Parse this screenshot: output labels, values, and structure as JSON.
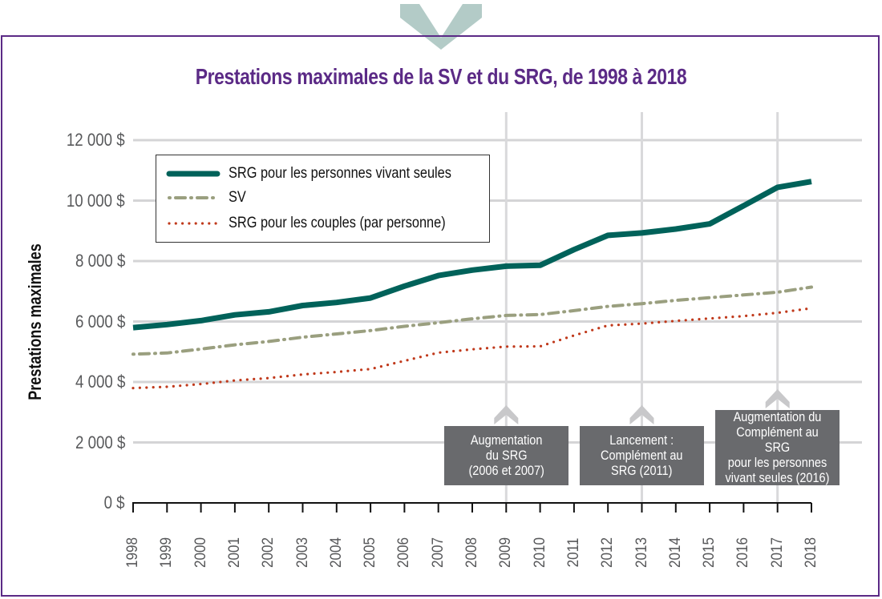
{
  "colors": {
    "frame": "#5b2a86",
    "title": "#5b2a86",
    "chevron": "#b3cbc7",
    "srg_single": "#00625a",
    "sv": "#9a9f7f",
    "srg_couple": "#c0391b",
    "annotation_bg": "#696a6d",
    "gridline": "#d4d4d6"
  },
  "chart_data": {
    "type": "line",
    "title": "Prestations maximales de la SV et du SRG, de 1998 à 2018",
    "xlabel": "",
    "ylabel": "Prestations maximales",
    "x": [
      1998,
      1999,
      2000,
      2001,
      2002,
      2003,
      2004,
      2005,
      2006,
      2007,
      2008,
      2009,
      2010,
      2011,
      2012,
      2013,
      2014,
      2015,
      2016,
      2017,
      2018
    ],
    "x_tick_labels": [
      "1998",
      "1999",
      "2000",
      "2001",
      "2002",
      "2003",
      "2004",
      "2005",
      "2006",
      "2007",
      "2008",
      "2009",
      "2010",
      "2011",
      "2012",
      "2013",
      "2014",
      "2015",
      "2016",
      "2017",
      "2018"
    ],
    "ylim": [
      0,
      12000
    ],
    "y_ticks": [
      0,
      2000,
      4000,
      6000,
      8000,
      10000,
      12000
    ],
    "y_tick_labels": [
      "0 $",
      "2 000 $",
      "4 000 $",
      "6 000 $",
      "8 000 $",
      "10 000 $",
      "12 000 $"
    ],
    "grid": true,
    "legend_position": "top-left",
    "series": [
      {
        "name": "SRG pour les personnes vivant seules",
        "style": "solid",
        "values": [
          5800,
          5900,
          6030,
          6220,
          6320,
          6530,
          6630,
          6780,
          7170,
          7520,
          7700,
          7830,
          7860,
          8380,
          8850,
          8930,
          9060,
          9230,
          9830,
          10440,
          10630
        ]
      },
      {
        "name": "SV",
        "style": "dash-dot",
        "values": [
          4920,
          4960,
          5090,
          5230,
          5340,
          5480,
          5590,
          5700,
          5840,
          5960,
          6090,
          6200,
          6230,
          6360,
          6500,
          6590,
          6700,
          6790,
          6880,
          6970,
          7140
        ]
      },
      {
        "name": "SRG pour les couples (par personne)",
        "style": "dotted",
        "values": [
          3800,
          3840,
          3930,
          4050,
          4130,
          4250,
          4330,
          4430,
          4700,
          4970,
          5080,
          5170,
          5180,
          5540,
          5870,
          5930,
          6020,
          6100,
          6180,
          6290,
          6440
        ]
      }
    ],
    "annotations": [
      {
        "year": 2009,
        "lines": [
          "Augmentation",
          "du SRG",
          "(2006 et 2007)"
        ]
      },
      {
        "year": 2013,
        "lines": [
          "Lancement :",
          "Complément au",
          "SRG (2011)"
        ]
      },
      {
        "year": 2017,
        "lines": [
          "Augmentation du",
          "Complément au SRG",
          "pour les personnes",
          "vivant seules (2016)"
        ]
      }
    ]
  }
}
